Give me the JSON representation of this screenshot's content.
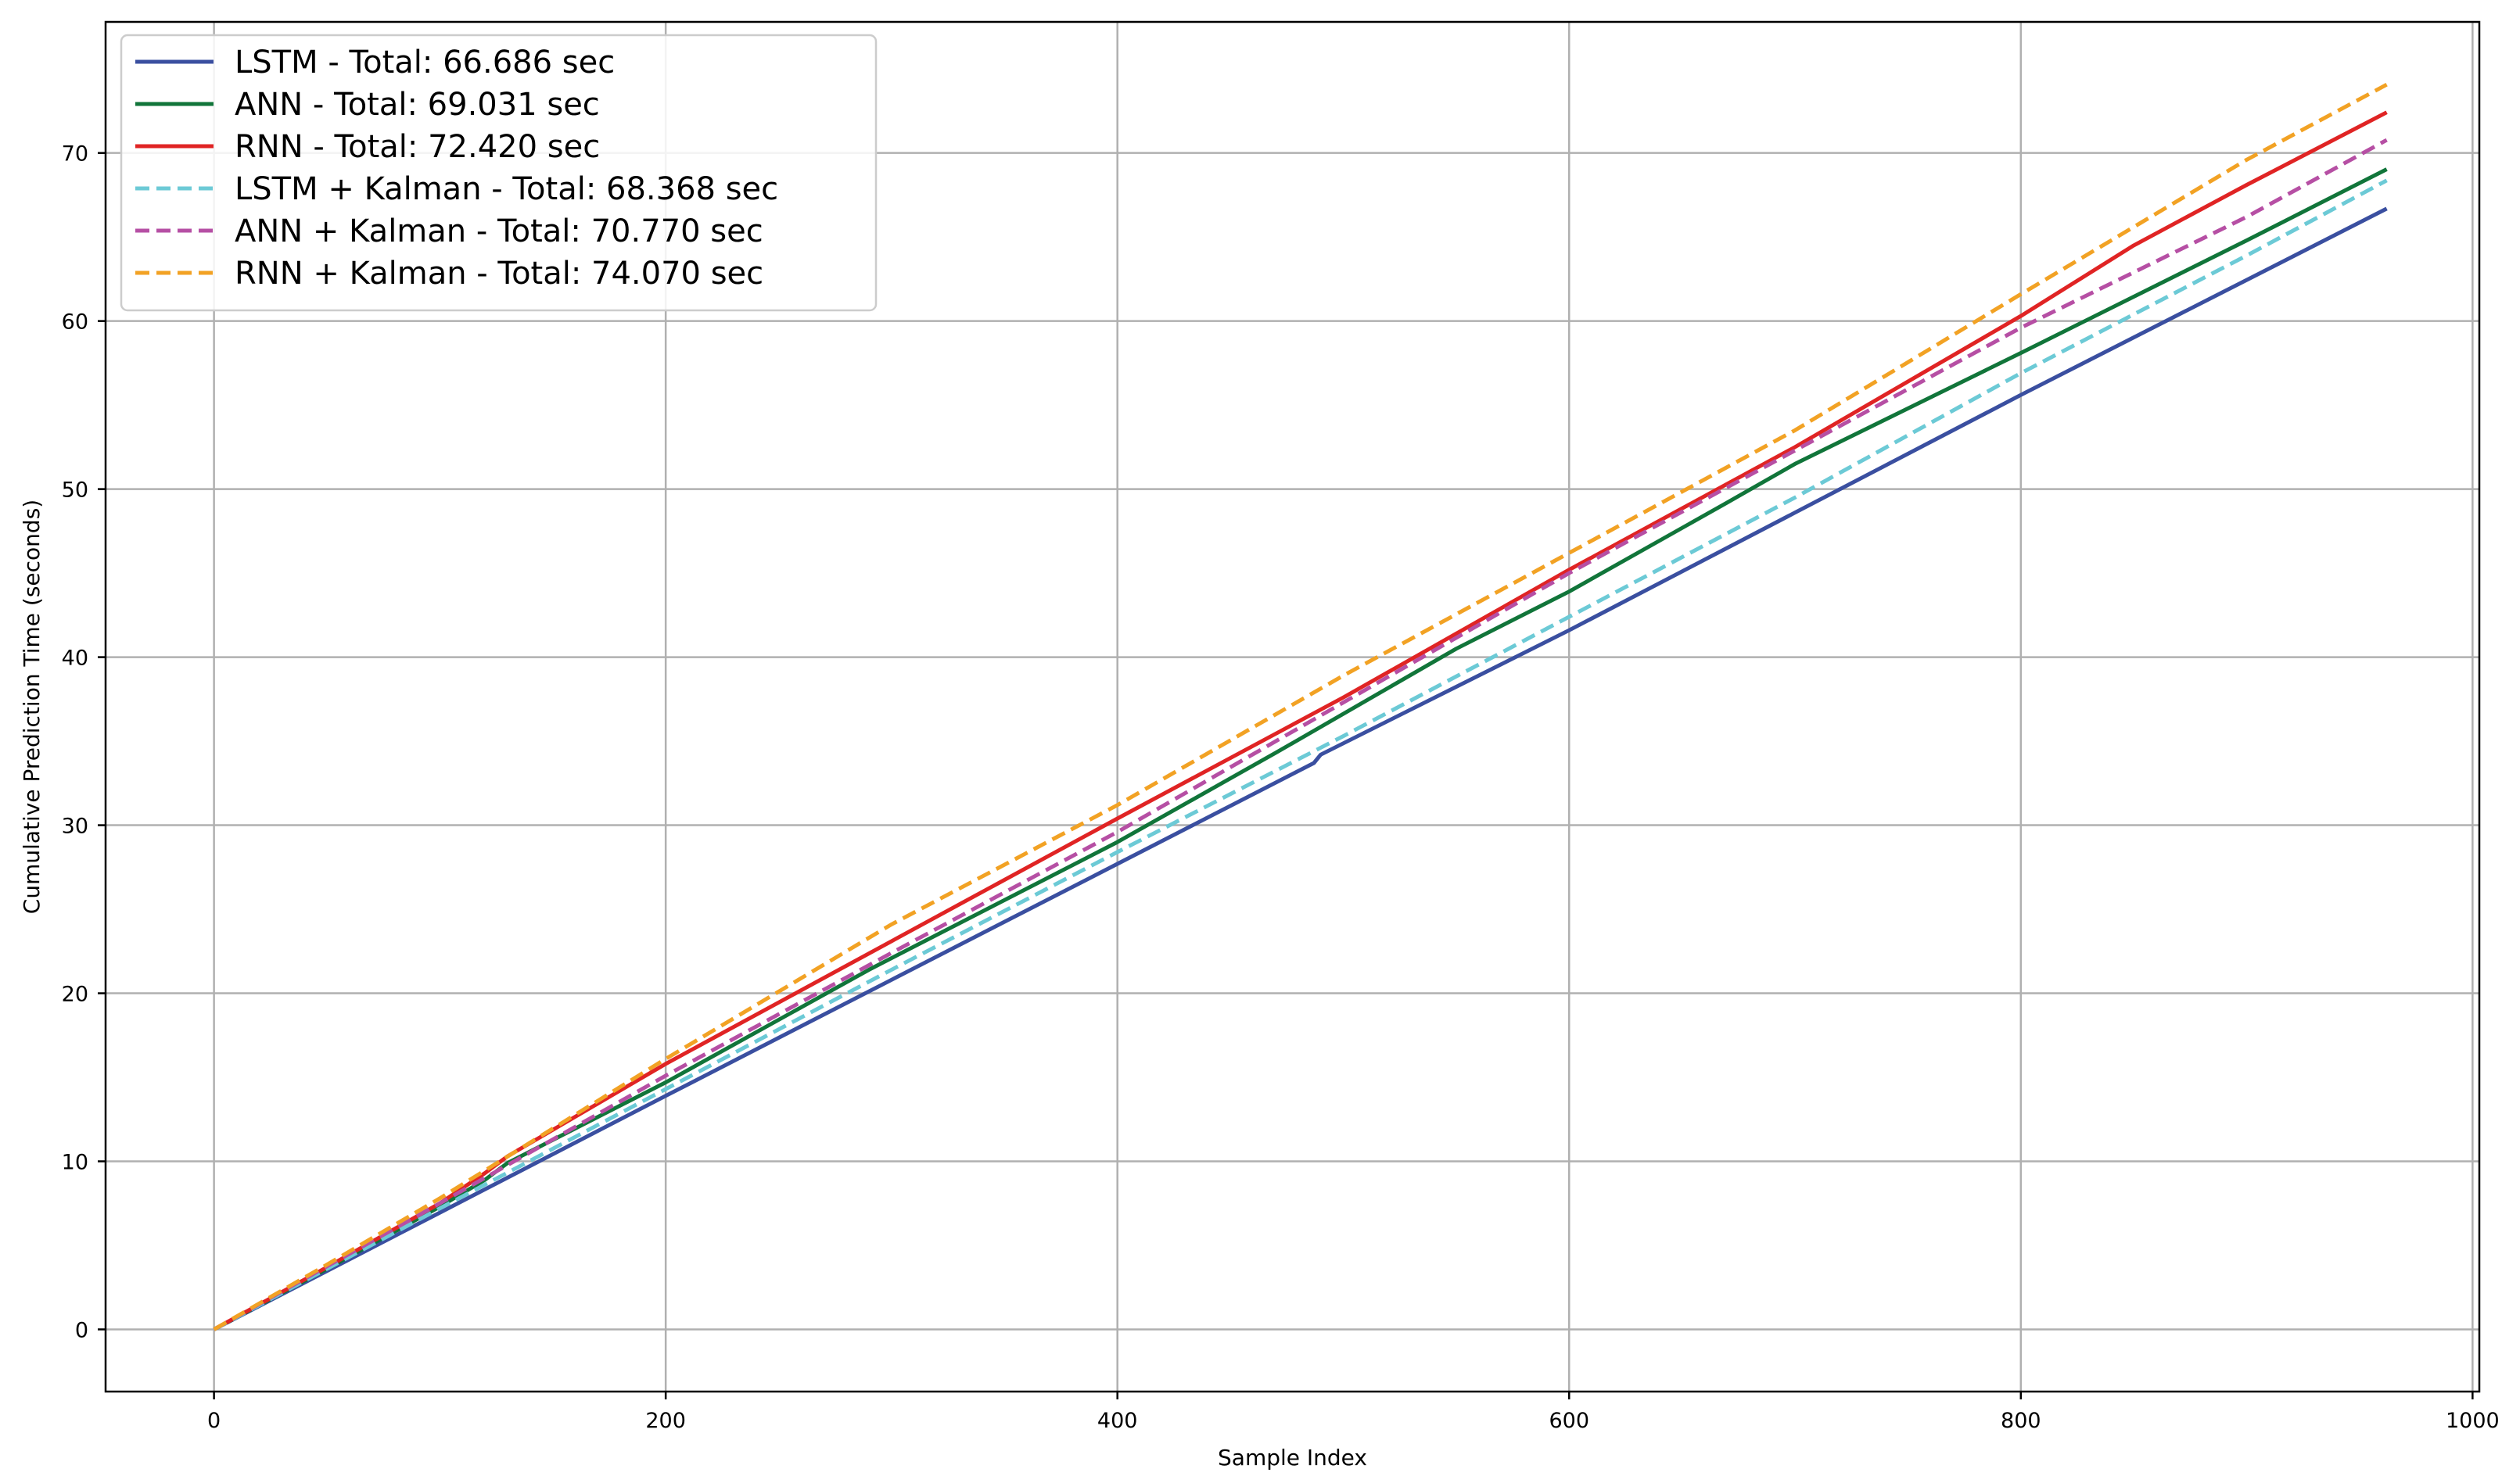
{
  "chart_data": {
    "type": "line",
    "xlabel": "Sample Index",
    "ylabel": "Cumulative Prediction Time (seconds)",
    "xlim": [
      -48,
      1003
    ],
    "ylim": [
      -3.7,
      77.8
    ],
    "xticks": [
      0,
      200,
      400,
      600,
      800,
      1000
    ],
    "yticks": [
      0,
      10,
      20,
      30,
      40,
      50,
      60,
      70
    ],
    "grid": true,
    "legend_position": "top-left",
    "series": [
      {
        "name": "LSTM  - Total: 66.686 sec",
        "color": "#3a4fa0",
        "dashed": false,
        "points": [
          [
            0,
            0
          ],
          [
            100,
            6.95
          ],
          [
            200,
            13.9
          ],
          [
            300,
            20.8
          ],
          [
            400,
            27.7
          ],
          [
            487,
            33.7
          ],
          [
            490,
            34.2
          ],
          [
            600,
            41.6
          ],
          [
            700,
            48.6
          ],
          [
            800,
            55.6
          ],
          [
            962,
            66.686
          ]
        ]
      },
      {
        "name": "ANN  - Total: 69.031 sec",
        "color": "#11753a",
        "dashed": false,
        "points": [
          [
            0,
            0
          ],
          [
            50,
            3.6
          ],
          [
            100,
            7.3
          ],
          [
            120,
            8.9
          ],
          [
            130,
            9.9
          ],
          [
            200,
            14.7
          ],
          [
            290,
            21.4
          ],
          [
            400,
            29.0
          ],
          [
            470,
            34.3
          ],
          [
            550,
            40.5
          ],
          [
            600,
            43.9
          ],
          [
            670,
            49.2
          ],
          [
            700,
            51.5
          ],
          [
            800,
            58.1
          ],
          [
            900,
            64.8
          ],
          [
            962,
            69.031
          ]
        ]
      },
      {
        "name": "RNN  - Total: 72.420 sec",
        "color": "#e02424",
        "dashed": false,
        "points": [
          [
            0,
            0
          ],
          [
            50,
            3.7
          ],
          [
            100,
            7.5
          ],
          [
            120,
            9.3
          ],
          [
            130,
            10.3
          ],
          [
            200,
            15.8
          ],
          [
            300,
            23.1
          ],
          [
            400,
            30.4
          ],
          [
            500,
            37.6
          ],
          [
            600,
            45.2
          ],
          [
            700,
            52.5
          ],
          [
            800,
            60.3
          ],
          [
            850,
            64.5
          ],
          [
            900,
            68.1
          ],
          [
            962,
            72.42
          ]
        ]
      },
      {
        "name": "LSTM + Kalman  - Total: 68.368 sec",
        "color": "#6ccad6",
        "dashed": true,
        "points": [
          [
            0,
            0
          ],
          [
            100,
            7.2
          ],
          [
            200,
            14.3
          ],
          [
            300,
            21.4
          ],
          [
            400,
            28.4
          ],
          [
            500,
            35.3
          ],
          [
            600,
            42.4
          ],
          [
            700,
            49.5
          ],
          [
            800,
            56.9
          ],
          [
            900,
            63.9
          ],
          [
            962,
            68.368
          ]
        ]
      },
      {
        "name": "ANN + Kalman  - Total: 70.770 sec",
        "color": "#b64fa4",
        "dashed": true,
        "points": [
          [
            0,
            0
          ],
          [
            50,
            3.75
          ],
          [
            100,
            7.5
          ],
          [
            200,
            15.1
          ],
          [
            300,
            22.4
          ],
          [
            400,
            29.6
          ],
          [
            500,
            37.3
          ],
          [
            600,
            45.0
          ],
          [
            700,
            52.3
          ],
          [
            800,
            59.6
          ],
          [
            900,
            66.2
          ],
          [
            962,
            70.77
          ]
        ]
      },
      {
        "name": "RNN + Kalman  - Total: 74.070 sec",
        "color": "#f2a224",
        "dashed": true,
        "points": [
          [
            0,
            0
          ],
          [
            50,
            3.85
          ],
          [
            100,
            7.8
          ],
          [
            200,
            16.1
          ],
          [
            300,
            24.1
          ],
          [
            400,
            31.2
          ],
          [
            500,
            38.9
          ],
          [
            600,
            46.2
          ],
          [
            700,
            53.5
          ],
          [
            800,
            61.6
          ],
          [
            850,
            65.6
          ],
          [
            900,
            69.6
          ],
          [
            962,
            74.07
          ]
        ]
      }
    ]
  }
}
